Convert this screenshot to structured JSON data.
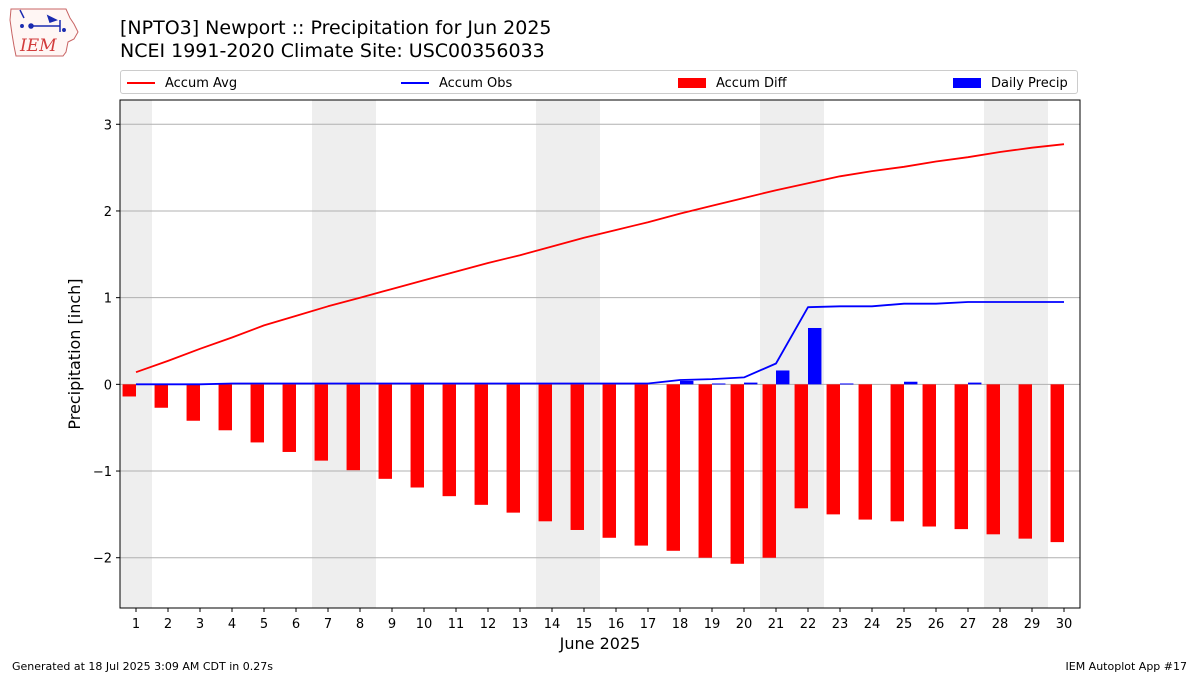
{
  "header": {
    "title_line1": "[NPTO3] Newport :: Precipitation for Jun 2025",
    "title_line2": "NCEI 1991-2020 Climate Site: USC00356033",
    "logo_text": "IEM"
  },
  "legend": {
    "items": [
      {
        "label": "Accum Avg",
        "color": "#ff0000",
        "kind": "line"
      },
      {
        "label": "Accum Obs",
        "color": "#0000ff",
        "kind": "line"
      },
      {
        "label": "Accum Diff",
        "color": "#ff0000",
        "kind": "box"
      },
      {
        "label": "Daily Precip",
        "color": "#0000ff",
        "kind": "box"
      }
    ]
  },
  "footer": {
    "left": "Generated at 18 Jul 2025 3:09 AM CDT in 0.27s",
    "right": "IEM Autoplot App #17"
  },
  "chart_data": {
    "type": "bar",
    "xlabel": "June 2025",
    "ylabel": "Precipitation [inch]",
    "ylim": [
      -2.58,
      3.28
    ],
    "xlim": [
      0.5,
      30.5
    ],
    "yticks": [
      -2,
      -1,
      0,
      1,
      2,
      3
    ],
    "ytick_labels": [
      "−2",
      "−1",
      "0",
      "1",
      "2",
      "3"
    ],
    "days": [
      1,
      2,
      3,
      4,
      5,
      6,
      7,
      8,
      9,
      10,
      11,
      12,
      13,
      14,
      15,
      16,
      17,
      18,
      19,
      20,
      21,
      22,
      23,
      24,
      25,
      26,
      27,
      28,
      29,
      30
    ],
    "weekend_bands": [
      [
        0.5,
        1.5
      ],
      [
        6.5,
        8.5
      ],
      [
        13.5,
        15.5
      ],
      [
        20.5,
        22.5
      ],
      [
        27.5,
        29.5
      ]
    ],
    "grid": true,
    "series": [
      {
        "name": "Accum Avg",
        "kind": "line",
        "color": "#ff0000",
        "values": [
          0.14,
          0.27,
          0.41,
          0.54,
          0.68,
          0.79,
          0.9,
          1.0,
          1.1,
          1.2,
          1.3,
          1.4,
          1.49,
          1.59,
          1.69,
          1.78,
          1.87,
          1.97,
          2.06,
          2.15,
          2.24,
          2.32,
          2.4,
          2.46,
          2.51,
          2.57,
          2.62,
          2.68,
          2.73,
          2.77
        ]
      },
      {
        "name": "Accum Obs",
        "kind": "line",
        "color": "#0000ff",
        "values": [
          0.0,
          0.0,
          0.0,
          0.01,
          0.01,
          0.01,
          0.01,
          0.01,
          0.01,
          0.01,
          0.01,
          0.01,
          0.01,
          0.01,
          0.01,
          0.01,
          0.01,
          0.05,
          0.06,
          0.08,
          0.24,
          0.89,
          0.9,
          0.9,
          0.93,
          0.93,
          0.95,
          0.95,
          0.95,
          0.95
        ]
      },
      {
        "name": "Accum Diff",
        "kind": "bar",
        "color": "#ff0000",
        "values": [
          -0.14,
          -0.27,
          -0.42,
          -0.53,
          -0.67,
          -0.78,
          -0.88,
          -0.99,
          -1.09,
          -1.19,
          -1.29,
          -1.39,
          -1.48,
          -1.58,
          -1.68,
          -1.77,
          -1.86,
          -1.92,
          -2.0,
          -2.07,
          -2.0,
          -1.43,
          -1.5,
          -1.56,
          -1.58,
          -1.64,
          -1.67,
          -1.73,
          -1.78,
          -1.82
        ]
      },
      {
        "name": "Daily Precip",
        "kind": "bar",
        "color": "#0000ff",
        "values": [
          0,
          0,
          0,
          0,
          0,
          0,
          0,
          0,
          0,
          0,
          0,
          0,
          0,
          0,
          0,
          0,
          0,
          0.04,
          0.01,
          0.02,
          0.16,
          0.65,
          0.01,
          0,
          0.03,
          0,
          0.02,
          0,
          0,
          0
        ]
      }
    ]
  }
}
